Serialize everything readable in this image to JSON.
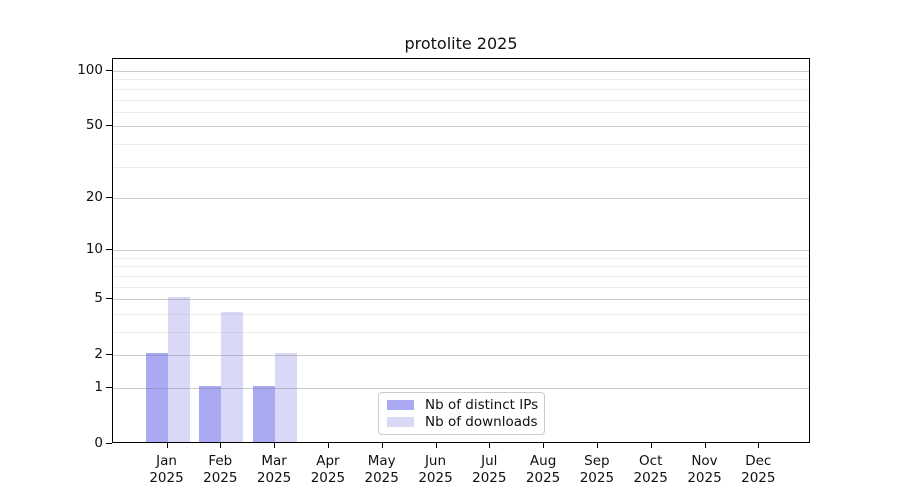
{
  "chart_data": {
    "type": "bar",
    "title": "protolite 2025",
    "months": [
      "Jan",
      "Feb",
      "Mar",
      "Apr",
      "May",
      "Jun",
      "Jul",
      "Aug",
      "Sep",
      "Oct",
      "Nov",
      "Dec"
    ],
    "year": "2025",
    "series": [
      {
        "name": "Nb of distinct IPs",
        "color": "#a9a9f4",
        "values": [
          2,
          1,
          1,
          0,
          0,
          0,
          0,
          0,
          0,
          0,
          0,
          0
        ]
      },
      {
        "name": "Nb of downloads",
        "color": "#d9d9f7",
        "values": [
          5,
          4,
          2,
          0,
          0,
          0,
          0,
          0,
          0,
          0,
          0,
          0
        ]
      }
    ],
    "y_axis": {
      "scale": "log1p",
      "ylim": [
        0,
        100
      ],
      "major_ticks": [
        0,
        1,
        2,
        5,
        10,
        20,
        50,
        100
      ],
      "minor_gridlines": [
        3,
        4,
        6,
        7,
        8,
        9,
        30,
        40,
        60,
        70,
        80,
        90
      ]
    },
    "grid": "horizontal",
    "legend_position": "lower-center-inside",
    "colors": {
      "background": "#ffffff",
      "axis": "#000000",
      "major_grid": "#d0d0d0",
      "minor_grid": "#ececec"
    }
  }
}
